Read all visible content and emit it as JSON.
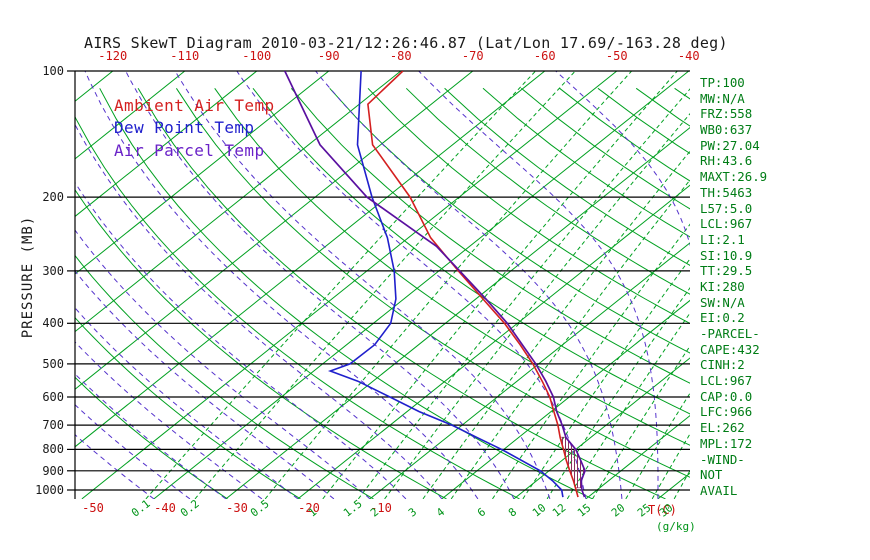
{
  "title": "AIRS SkewT Diagram 2010-03-21/12:26:46.87 (Lat/Lon 17.69/-163.28 deg)",
  "legend": [
    {
      "id": "ambient",
      "label": "Ambient Air Temp",
      "color": "#d42020"
    },
    {
      "id": "dewpoint",
      "label": "Dew Point Temp",
      "color": "#2020cc"
    },
    {
      "id": "parcel",
      "label": "Air Parcel Temp",
      "color": "#6a22c8"
    }
  ],
  "axes": {
    "pressure_label": "PRESSURE (MB)",
    "pressure_ticks": [
      100,
      200,
      300,
      400,
      500,
      600,
      700,
      800,
      900,
      1000
    ],
    "top_temp_ticks": [
      -120,
      -110,
      -100,
      -90,
      -80,
      -70,
      -60,
      -50,
      -40
    ],
    "bottom_temp_ticks": [
      -50,
      -40,
      -30,
      -20,
      -10
    ],
    "bottom_temp_unit": "T(C)",
    "mixing_ratio_ticks": [
      0.1,
      0.2,
      0.5,
      1,
      1.5,
      2,
      3,
      4,
      6,
      8,
      10,
      12,
      15,
      20,
      25,
      30
    ],
    "mixing_ratio_unit": "(g/kg)"
  },
  "stats_panel": [
    "TP:100",
    "MW:N/A",
    "FRZ:558",
    "WB0:637",
    "PW:27.04",
    "RH:43.6",
    "MAXT:26.9",
    "TH:5463",
    "L57:5.0",
    "LCL:967",
    "LI:2.1",
    "SI:10.9",
    "TT:29.5",
    "KI:280",
    "SW:N/A",
    "EI:0.2",
    "-PARCEL-",
    "CAPE:432",
    "CINH:2",
    "LCL:967",
    "CAP:0.0",
    "LFC:966",
    "EL:262",
    "MPL:172",
    "-WIND-",
    "NOT",
    "AVAIL"
  ],
  "colors": {
    "background": "#ffffff",
    "grid_green": "#00a020",
    "moist_adiabat": "#5533cc",
    "pressure_line": "#000000",
    "axis_red": "#cc1111",
    "axis_green": "#009418",
    "title_text": "#1a1a1a",
    "stats_green": "#007d16",
    "hatch": "#8b2f5f"
  },
  "chart_data": {
    "type": "line",
    "subtype": "skew-t-log-p",
    "pressure_range_hpa": [
      100,
      1050
    ],
    "pressure_scale": "log",
    "grid": {
      "isotherms_C": {
        "start": -160,
        "end": 40,
        "step": 10
      },
      "dry_adiabats_K": {
        "start": 240,
        "end": 450,
        "step": 10
      },
      "moist_adiabat_starts_C": [
        -40,
        -35,
        -30,
        -25,
        -20,
        -15,
        -10,
        -5,
        0,
        5,
        10,
        15,
        20,
        25,
        30,
        35,
        40
      ]
    },
    "series": [
      {
        "id": "ambient-temp-curve",
        "name": "Ambient Air Temp",
        "color": "#d42020",
        "width": 1.6,
        "points": [
          [
            1040,
            18.6
          ],
          [
            1000,
            17.1
          ],
          [
            950,
            15.1
          ],
          [
            900,
            12.9
          ],
          [
            850,
            10.6
          ],
          [
            800,
            8.3
          ],
          [
            750,
            5.8
          ],
          [
            700,
            3.3
          ],
          [
            650,
            0.4
          ],
          [
            600,
            -2.7
          ],
          [
            550,
            -6.5
          ],
          [
            500,
            -10.8
          ],
          [
            450,
            -15.9
          ],
          [
            400,
            -21.8
          ],
          [
            350,
            -29.0
          ],
          [
            300,
            -37.3
          ],
          [
            250,
            -46.9
          ],
          [
            200,
            -56.8
          ],
          [
            150,
            -71.1
          ],
          [
            120,
            -78.8
          ],
          [
            100,
            -79.7
          ]
        ]
      },
      {
        "id": "dewpoint-curve",
        "name": "Dew Point Temp",
        "color": "#2020cc",
        "width": 1.6,
        "points": [
          [
            1040,
            16.5
          ],
          [
            1000,
            15.1
          ],
          [
            950,
            12.2
          ],
          [
            900,
            8.8
          ],
          [
            850,
            4.4
          ],
          [
            800,
            -0.3
          ],
          [
            750,
            -5.7
          ],
          [
            700,
            -11.4
          ],
          [
            650,
            -18.3
          ],
          [
            600,
            -24.9
          ],
          [
            550,
            -32.1
          ],
          [
            520,
            -37.7
          ],
          [
            500,
            -36.2
          ],
          [
            450,
            -36.1
          ],
          [
            400,
            -37.6
          ],
          [
            350,
            -41.1
          ],
          [
            300,
            -46.2
          ],
          [
            250,
            -52.9
          ],
          [
            200,
            -62.1
          ],
          [
            150,
            -73.2
          ],
          [
            100,
            -85.5
          ]
        ]
      },
      {
        "id": "parcel-curve",
        "name": "Air Parcel Temp",
        "color": "#5a10a0",
        "width": 1.7,
        "points": [
          [
            1040,
            19.5
          ],
          [
            1000,
            17.9
          ],
          [
            950,
            16.2
          ],
          [
            900,
            15.0
          ],
          [
            850,
            12.6
          ],
          [
            800,
            10.0
          ],
          [
            750,
            6.6
          ],
          [
            700,
            3.9
          ],
          [
            650,
            0.8
          ],
          [
            600,
            -2.2
          ],
          [
            550,
            -6.0
          ],
          [
            500,
            -10.4
          ],
          [
            450,
            -15.6
          ],
          [
            400,
            -21.4
          ],
          [
            350,
            -28.6
          ],
          [
            300,
            -37.1
          ],
          [
            262,
            -44.6
          ],
          [
            250,
            -47.8
          ],
          [
            200,
            -62.8
          ],
          [
            150,
            -78.4
          ],
          [
            100,
            -96.1
          ]
        ]
      }
    ],
    "cape_hatch": {
      "bottom_pressure": 988,
      "top_pressure": 748
    }
  }
}
